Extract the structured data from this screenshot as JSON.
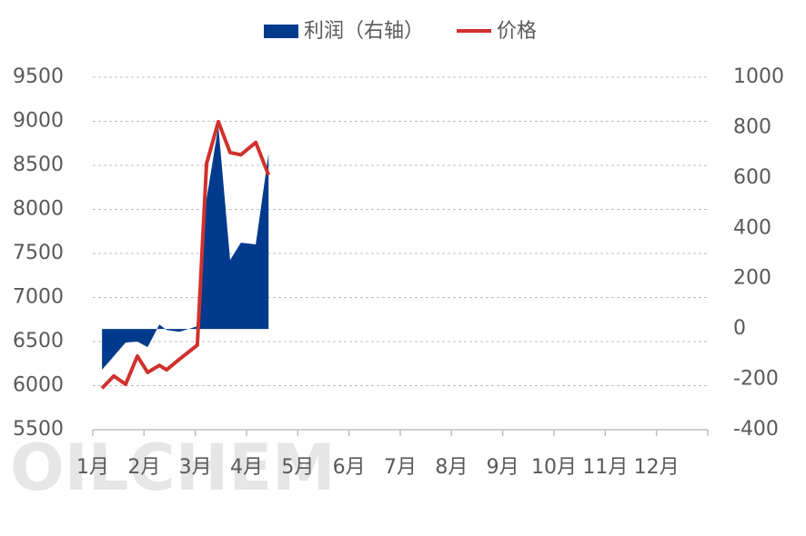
{
  "chart_data": {
    "type": "line",
    "legend": "top",
    "grid": true,
    "watermark": "OILCHEM",
    "x": [
      1.18,
      1.41,
      1.64,
      1.87,
      2.07,
      2.3,
      2.44,
      2.69,
      3.04,
      3.22,
      3.45,
      3.68,
      3.89,
      4.18,
      4.43
    ],
    "xlim": [
      1,
      13
    ],
    "xticks": [
      {
        "value": 1,
        "label": "1月"
      },
      {
        "value": 2,
        "label": "2月"
      },
      {
        "value": 3,
        "label": "3月"
      },
      {
        "value": 4,
        "label": "4月"
      },
      {
        "value": 5,
        "label": "5月"
      },
      {
        "value": 6,
        "label": "6月"
      },
      {
        "value": 7,
        "label": "7月"
      },
      {
        "value": 8,
        "label": "8月"
      },
      {
        "value": 9,
        "label": "9月"
      },
      {
        "value": 10,
        "label": "10月"
      },
      {
        "value": 11,
        "label": "11月"
      },
      {
        "value": 12,
        "label": "12月"
      }
    ],
    "ylim": [
      5500,
      9500
    ],
    "yticks": [
      5500,
      6000,
      6500,
      7000,
      7500,
      8000,
      8500,
      9000,
      9500
    ],
    "y2lim": [
      -400,
      1000
    ],
    "y2ticks": [
      -400,
      -200,
      0,
      200,
      400,
      600,
      800,
      1000
    ],
    "series": [
      {
        "name": "利润（右轴）",
        "color": "#003a8c",
        "axis": "y2",
        "kind": "area",
        "values": [
          -162,
          -108,
          -54,
          -50,
          -72,
          18,
          -4,
          -11,
          11,
          516,
          805,
          274,
          343,
          336,
          697
        ]
      },
      {
        "name": "价格",
        "color": "#d0312d",
        "kind": "line",
        "values": [
          5970,
          6110,
          6015,
          6335,
          6150,
          6230,
          6180,
          6300,
          6460,
          8520,
          8995,
          8645,
          8620,
          8760,
          8390
        ]
      }
    ]
  }
}
